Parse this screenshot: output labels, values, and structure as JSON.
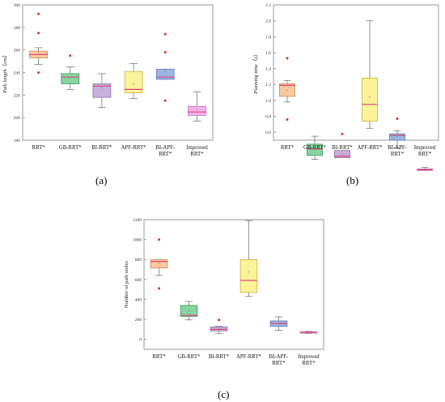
{
  "panel_labels": [
    "(a)",
    "(b)",
    "(c)"
  ],
  "colors": {
    "frame": "#9a9a9a",
    "whisker": "#777777",
    "median": "#e0407a",
    "mean_marker": "#3aa86b",
    "outlier": "#e03030",
    "box_fills": [
      "#f9c9a0",
      "#88d4a0",
      "#c8b0dc",
      "#fbf29a",
      "#9bb6e0",
      "#f4b2ee"
    ],
    "box_edges": [
      "#d08a55",
      "#3f9a5e",
      "#8a70a8",
      "#c9b43c",
      "#5b7fc0",
      "#c46fb8"
    ]
  },
  "chart_data": [
    {
      "type": "box",
      "panel": "(a)",
      "ylabel": "Path length（cm）",
      "ylim": [
        180,
        300
      ],
      "yticks": [
        180,
        200,
        220,
        240,
        260,
        280,
        300
      ],
      "categories": [
        "RRT*",
        "GB-RRT*",
        "BI-RRT*",
        "APF-RRT*",
        "BI-APF-\nRRT*",
        "Improved\nRRT*"
      ],
      "series": [
        {
          "q1": 253,
          "median": 256,
          "q3": 259,
          "whisker_low": 247,
          "whisker_high": 262,
          "mean": 258,
          "outliers": [
            292,
            275,
            240
          ]
        },
        {
          "q1": 230,
          "median": 236,
          "q3": 239,
          "whisker_low": 225,
          "whisker_high": 245,
          "mean": 235,
          "outliers": [
            255
          ]
        },
        {
          "q1": 218,
          "median": 228,
          "q3": 230,
          "whisker_low": 209,
          "whisker_high": 239,
          "mean": 226,
          "outliers": []
        },
        {
          "q1": 222,
          "median": 225,
          "q3": 241,
          "whisker_low": 217,
          "whisker_high": 248,
          "mean": 230,
          "outliers": []
        },
        {
          "q1": 234,
          "median": 236,
          "q3": 243,
          "whisker_low": 234,
          "whisker_high": 243,
          "mean": 241,
          "outliers": [
            274,
            258,
            215
          ]
        },
        {
          "q1": 202,
          "median": 205,
          "q3": 210,
          "whisker_low": 197,
          "whisker_high": 223,
          "mean": 207,
          "outliers": []
        }
      ]
    },
    {
      "type": "box",
      "panel": "(b)",
      "ylabel": "Planning time（s）",
      "ylim": [
        0.5,
        2.2
      ],
      "yticks": [
        0.6,
        0.8,
        1.0,
        1.2,
        1.4,
        1.6,
        1.8,
        2.0,
        2.2
      ],
      "ytick_labels": [
        "0.6",
        "0.8",
        "1.0",
        "1.2",
        "1.4",
        "1.6",
        "1.8",
        "2.0",
        "2.2"
      ],
      "categories": [
        "RRT*",
        "GB-RRT*",
        "BI-RRT*",
        "APF-RRT*",
        "BI-APF-\nRRT*",
        "Improved\nRRT*"
      ],
      "series": [
        {
          "q1": 1.05,
          "median": 1.19,
          "q3": 1.21,
          "whisker_low": 0.98,
          "whisker_high": 1.25,
          "mean": 1.12,
          "outliers": [
            1.53,
            0.76
          ]
        },
        {
          "q1": 0.31,
          "median": 0.39,
          "q3": 0.45,
          "whisker_low": 0.26,
          "whisker_high": 0.55,
          "mean": 0.38,
          "outliers": []
        },
        {
          "q1": 0.28,
          "median": 0.3,
          "q3": 0.37,
          "whisker_low": 0.28,
          "whisker_high": 0.37,
          "mean": 0.32,
          "outliers": [
            0.58
          ]
        },
        {
          "q1": 0.74,
          "median": 0.95,
          "q3": 1.28,
          "whisker_low": 0.65,
          "whisker_high": 2.0,
          "mean": 1.04,
          "outliers": []
        },
        {
          "q1": 0.5,
          "median": 0.56,
          "q3": 0.58,
          "whisker_low": 0.4,
          "whisker_high": 0.62,
          "mean": 0.55,
          "outliers": [
            0.77
          ]
        },
        {
          "q1": 0.12,
          "median": 0.13,
          "q3": 0.14,
          "whisker_low": 0.12,
          "whisker_high": 0.16,
          "mean": 0.13,
          "outliers": []
        }
      ]
    },
    {
      "type": "box",
      "panel": "(c)",
      "ylabel": "Number of path nodes",
      "ylim": [
        -100,
        1200
      ],
      "yticks": [
        0,
        200,
        400,
        600,
        800,
        1000,
        1200
      ],
      "categories": [
        "RRT*",
        "GB-RRT*",
        "BI-RRT*",
        "APF-RRT*",
        "BI-APF-\nRRT*",
        "Improved\nRRT*"
      ],
      "series": [
        {
          "q1": 715,
          "median": 780,
          "q3": 800,
          "whisker_low": 640,
          "whisker_high": 800,
          "mean": 760,
          "outliers": [
            1000,
            510
          ]
        },
        {
          "q1": 230,
          "median": 240,
          "q3": 340,
          "whisker_low": 195,
          "whisker_high": 380,
          "mean": 280,
          "outliers": []
        },
        {
          "q1": 85,
          "median": 100,
          "q3": 125,
          "whisker_low": 60,
          "whisker_high": 130,
          "mean": 105,
          "outliers": [
            195
          ]
        },
        {
          "q1": 470,
          "median": 590,
          "q3": 800,
          "whisker_low": 430,
          "whisker_high": 1190,
          "mean": 670,
          "outliers": []
        },
        {
          "q1": 130,
          "median": 160,
          "q3": 185,
          "whisker_low": 90,
          "whisker_high": 225,
          "mean": 155,
          "outliers": []
        },
        {
          "q1": 65,
          "median": 70,
          "q3": 75,
          "whisker_low": 60,
          "whisker_high": 80,
          "mean": 70,
          "outliers": []
        }
      ]
    }
  ]
}
